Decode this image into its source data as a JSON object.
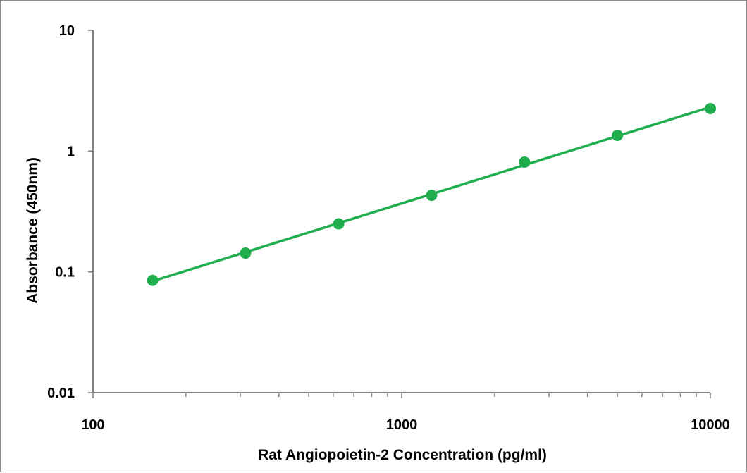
{
  "chart_data": {
    "type": "line",
    "title": "",
    "xlabel": "Rat Angiopoietin-2 Concentration (pg/ml)",
    "ylabel": "Absorbance (450nm)",
    "xscale": "log",
    "yscale": "log",
    "xlim": [
      100,
      10000
    ],
    "ylim": [
      0.01,
      10
    ],
    "x_ticks": [
      100,
      1000,
      10000
    ],
    "x_tick_labels": [
      "100",
      "1000",
      "10000"
    ],
    "y_ticks": [
      0.01,
      0.1,
      1,
      10
    ],
    "y_tick_labels": [
      "0.01",
      "0.1",
      "1",
      "10"
    ],
    "grid": false,
    "legend": "none",
    "series": [
      {
        "color": "#1fae4e",
        "marker": "circle",
        "x": [
          156,
          312,
          625,
          1250,
          2500,
          5000,
          10000
        ],
        "y": [
          0.085,
          0.143,
          0.25,
          0.43,
          0.81,
          1.35,
          2.25
        ]
      }
    ]
  }
}
